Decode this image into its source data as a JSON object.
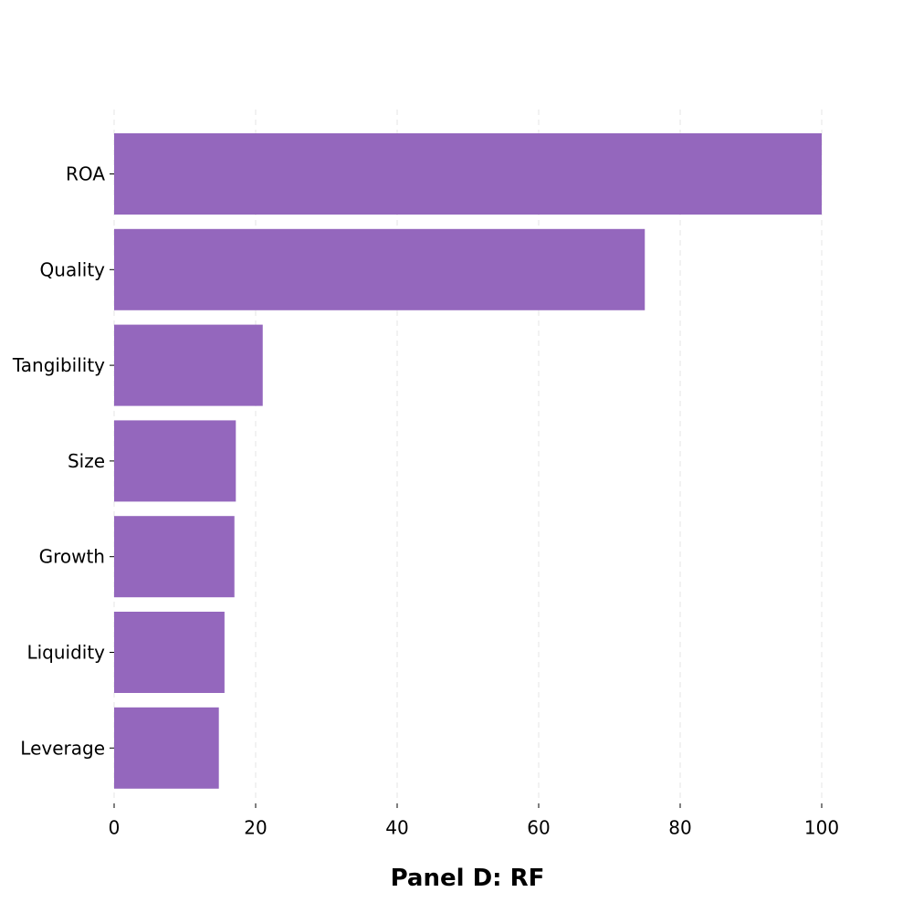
{
  "chart_data": {
    "type": "bar",
    "orientation": "horizontal",
    "categories": [
      "ROA",
      "Quality",
      "Tangibility",
      "Size",
      "Growth",
      "Liquidity",
      "Leverage"
    ],
    "values": [
      100,
      75,
      21,
      17.2,
      17,
      15.6,
      14.8
    ],
    "xlabel": "Panel D: RF",
    "ylabel": "",
    "title": "",
    "xlim": [
      0,
      100
    ],
    "xticks": [
      0,
      20,
      40,
      60,
      80,
      100
    ],
    "grid": "vertical dashed",
    "bar_color": "#9467bd",
    "grid_color": "#e6e6e6"
  }
}
